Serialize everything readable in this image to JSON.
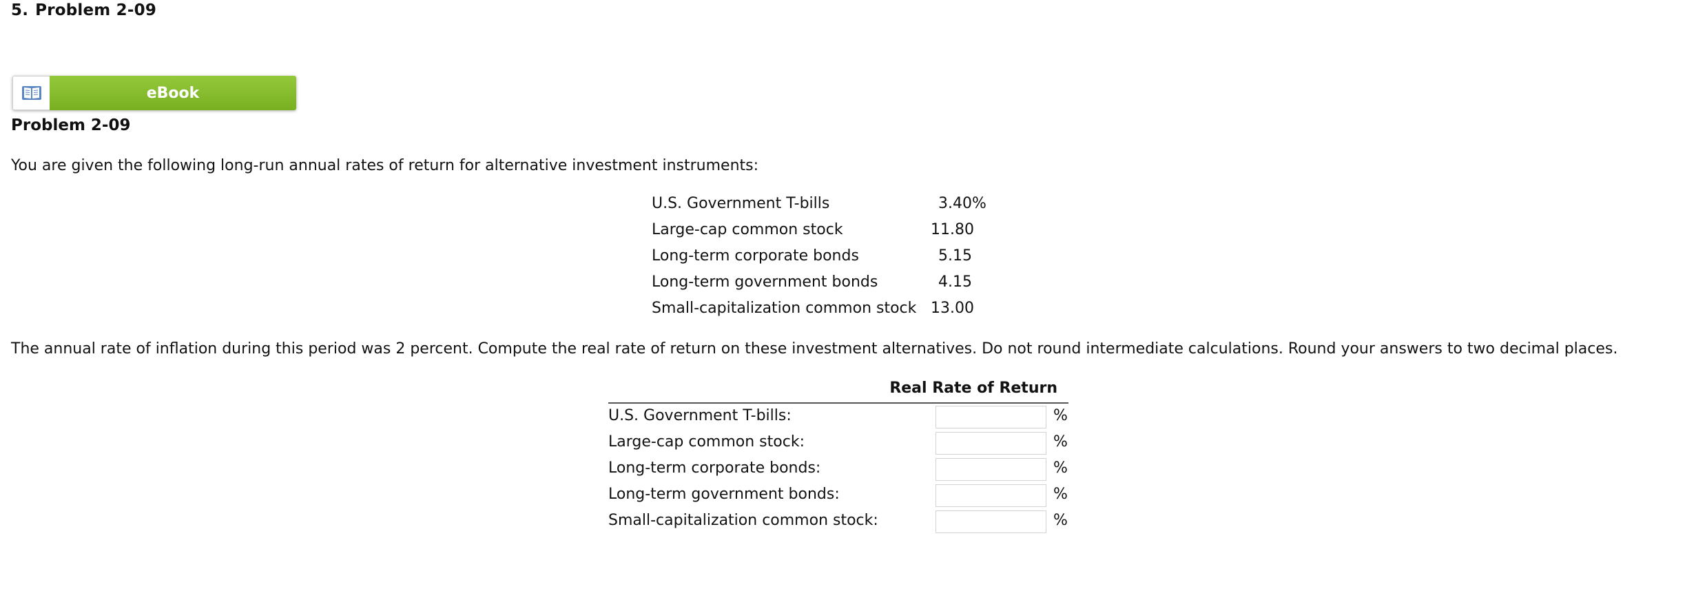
{
  "question": {
    "number": "5.",
    "title": "Problem 2-09"
  },
  "ebook": {
    "icon": "book-icon",
    "label": "eBook",
    "accent_color": "#86bd2e"
  },
  "problem": {
    "title": "Problem 2-09",
    "intro": "You are given the following long-run annual rates of return for alternative investment instruments:",
    "rates": [
      {
        "name": "U.S. Government T-bills",
        "value": "3.40",
        "unit": "%"
      },
      {
        "name": "Large-cap common stock",
        "value": "11.80",
        "unit": ""
      },
      {
        "name": "Long-term corporate bonds",
        "value": "5.15",
        "unit": ""
      },
      {
        "name": "Long-term government bonds",
        "value": "4.15",
        "unit": ""
      },
      {
        "name": "Small-capitalization common stock",
        "value": "13.00",
        "unit": ""
      }
    ],
    "inflation_text": "The annual rate of inflation during this period was 2 percent. Compute the real rate of return on these investment alternatives. Do not round intermediate calculations. Round your answers to two decimal places."
  },
  "answer_table": {
    "column_header": "Real Rate of Return",
    "rows": [
      {
        "label": "U.S. Government T-bills:",
        "value": "",
        "unit": "%"
      },
      {
        "label": "Large-cap common stock:",
        "value": "",
        "unit": "%"
      },
      {
        "label": "Long-term corporate bonds:",
        "value": "",
        "unit": "%"
      },
      {
        "label": "Long-term government bonds:",
        "value": "",
        "unit": "%"
      },
      {
        "label": "Small-capitalization common stock:",
        "value": "",
        "unit": "%"
      }
    ]
  }
}
